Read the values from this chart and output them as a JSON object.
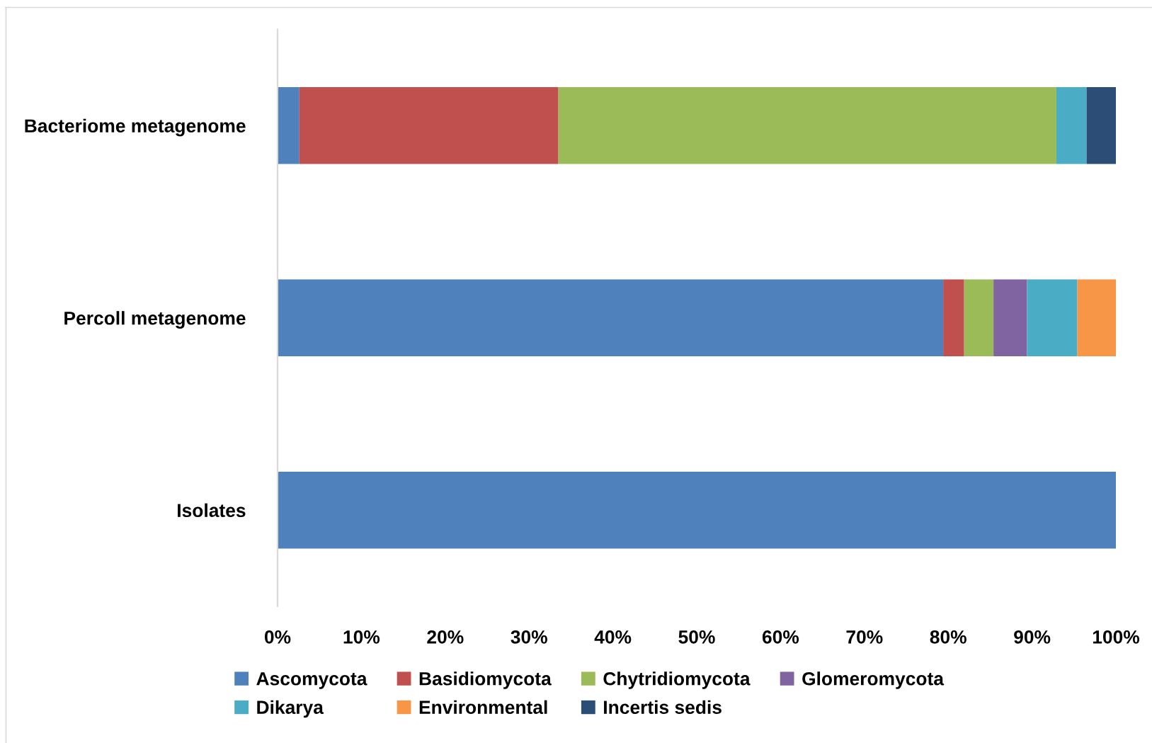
{
  "chart_data": {
    "type": "bar",
    "orientation": "horizontal",
    "stacked": true,
    "categories": [
      "Bacteriome metagenome",
      "Percoll metagenome",
      "Isolates"
    ],
    "series": [
      {
        "name": "Ascomycota",
        "color": "#4f81bd",
        "values": [
          2.6,
          79.4,
          100
        ]
      },
      {
        "name": "Basidiomycota",
        "color": "#c0504d",
        "values": [
          30.9,
          2.5,
          0
        ]
      },
      {
        "name": "Chytridiomycota",
        "color": "#9bbb59",
        "values": [
          59.4,
          3.5,
          0
        ]
      },
      {
        "name": "Glomeromycota",
        "color": "#8064a2",
        "values": [
          0,
          4.0,
          0
        ]
      },
      {
        "name": "Dikarya",
        "color": "#4bacc6",
        "values": [
          3.6,
          6.0,
          0
        ]
      },
      {
        "name": "Environmental",
        "color": "#f79646",
        "values": [
          0,
          4.6,
          0
        ]
      },
      {
        "name": "Incertis sedis",
        "color": "#2c4d75",
        "values": [
          3.5,
          0,
          0
        ]
      }
    ],
    "xlim": [
      0,
      100
    ],
    "xticks": [
      {
        "value": 0,
        "label": "0%"
      },
      {
        "value": 10,
        "label": "10%"
      },
      {
        "value": 20,
        "label": "20%"
      },
      {
        "value": 30,
        "label": "30%"
      },
      {
        "value": 40,
        "label": "40%"
      },
      {
        "value": 50,
        "label": "50%"
      },
      {
        "value": 60,
        "label": "60%"
      },
      {
        "value": 70,
        "label": "70%"
      },
      {
        "value": 80,
        "label": "80%"
      },
      {
        "value": 90,
        "label": "90%"
      },
      {
        "value": 100,
        "label": "100%"
      }
    ],
    "grid": false,
    "legend": "bottom"
  }
}
